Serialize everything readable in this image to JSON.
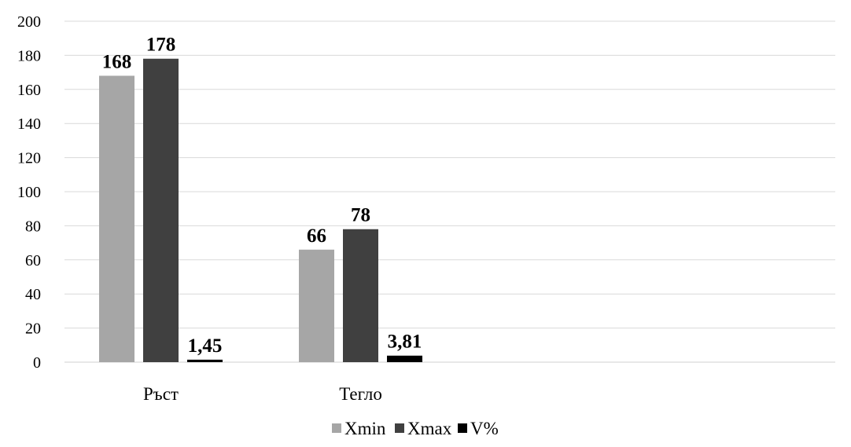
{
  "chart_data": {
    "type": "bar",
    "title": "",
    "xlabel": "",
    "ylabel": "",
    "categories": [
      "Ръст",
      "Тегло"
    ],
    "series": [
      {
        "name": "Xmin",
        "values": [
          168,
          66
        ],
        "labels": [
          "168",
          "66"
        ],
        "color": "#a6a6a6"
      },
      {
        "name": "Xmax",
        "values": [
          178,
          78
        ],
        "labels": [
          "178",
          "78"
        ],
        "color": "#404040"
      },
      {
        "name": "V%",
        "values": [
          1.45,
          3.81
        ],
        "labels": [
          "1,45",
          "3,81"
        ],
        "color": "#000000"
      }
    ],
    "ylim": [
      0,
      200
    ],
    "yticks": [
      0,
      20,
      40,
      60,
      80,
      100,
      120,
      140,
      160,
      180,
      200
    ],
    "grid": true,
    "legend_position": "bottom"
  }
}
